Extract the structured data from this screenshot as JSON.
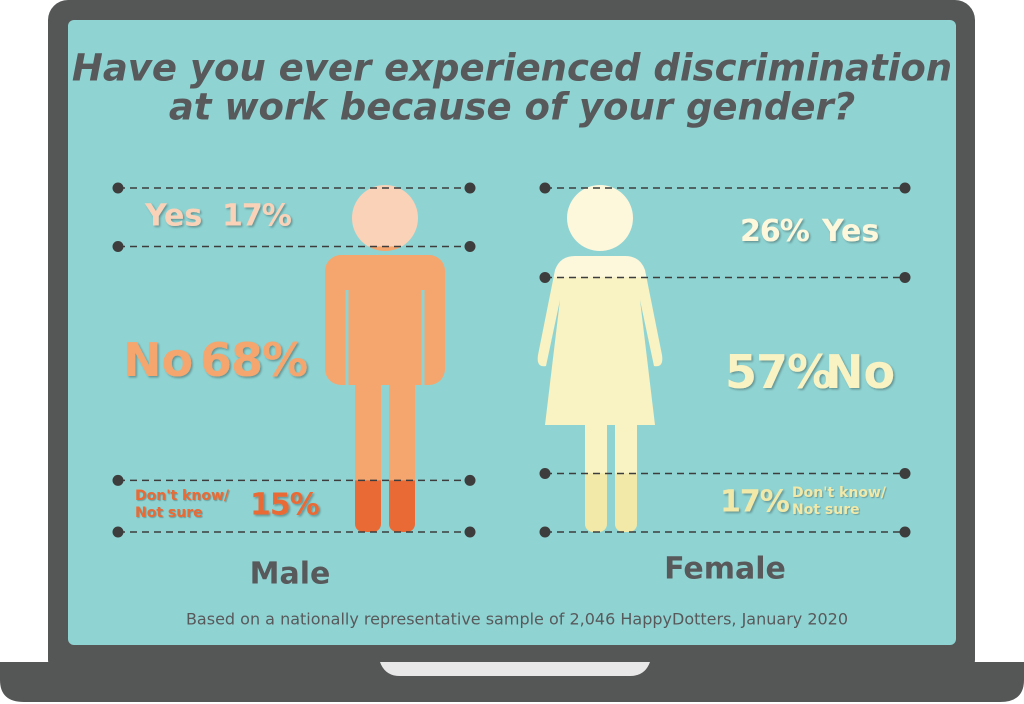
{
  "chart_data": {
    "type": "figure-bands",
    "title": [
      "Have you ever experienced discrimination",
      "at work because of your gender?"
    ],
    "categories": [
      "Yes",
      "No",
      "Don't know/ Not sure"
    ],
    "series": [
      {
        "name": "Male",
        "values": [
          17,
          68,
          15
        ],
        "value_labels": [
          "17%",
          "68%",
          "15%"
        ],
        "colors": [
          "#fad2b8",
          "#f5a56e",
          "#ea6a35"
        ]
      },
      {
        "name": "Female",
        "values": [
          26,
          57,
          17
        ],
        "value_labels": [
          "26%",
          "57%",
          "17%"
        ],
        "colors": [
          "#fdf7dc",
          "#f9f2c2",
          "#f2e9a8"
        ]
      }
    ],
    "note": "Based on a nationally representative sample of 2,046 HappyDotters, January 2020"
  }
}
